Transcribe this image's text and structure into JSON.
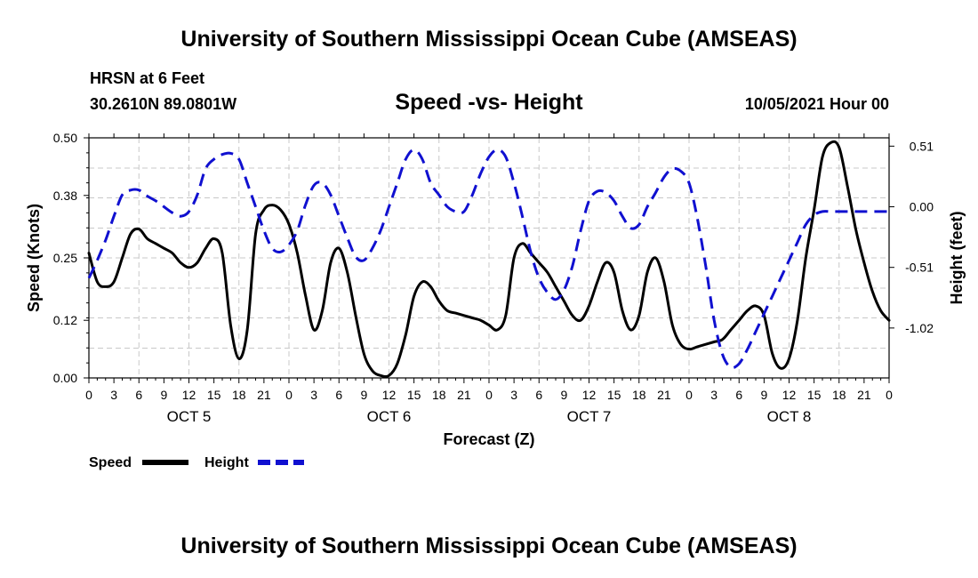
{
  "header": {
    "title": "University of Southern Mississippi Ocean Cube (AMSEAS)",
    "station": "HRSN at 6 Feet",
    "coords": "30.2610N  89.0801W",
    "chart_title": "Speed -vs- Height",
    "datetime": "10/05/2021 Hour 00"
  },
  "footer": {
    "title": "University of Southern Mississippi Ocean Cube (AMSEAS)"
  },
  "chart_data": {
    "type": "line",
    "title": "Speed -vs- Height",
    "xlabel": "Forecast (Z)",
    "ylabel": "Speed (Knots)",
    "y2label": "Height (feet)",
    "grid": true,
    "xlim": [
      0,
      96
    ],
    "ylim": [
      0,
      0.5
    ],
    "y2lim": [
      -1.44,
      0.58
    ],
    "x_ticks": [
      0,
      3,
      6,
      9,
      12,
      15,
      18,
      21,
      24,
      27,
      30,
      33,
      36,
      39,
      42,
      45,
      48,
      51,
      54,
      57,
      60,
      63,
      66,
      69,
      72,
      75,
      78,
      81,
      84,
      87,
      90,
      93,
      96
    ],
    "x_tick_labels": [
      "0",
      "3",
      "6",
      "9",
      "12",
      "15",
      "18",
      "21",
      "0",
      "3",
      "6",
      "9",
      "12",
      "15",
      "18",
      "21",
      "0",
      "3",
      "6",
      "9",
      "12",
      "15",
      "18",
      "21",
      "0",
      "3",
      "6",
      "9",
      "12",
      "15",
      "18",
      "21",
      "0"
    ],
    "day_labels": [
      {
        "x": 12,
        "label": "OCT 5"
      },
      {
        "x": 36,
        "label": "OCT 6"
      },
      {
        "x": 60,
        "label": "OCT 7"
      },
      {
        "x": 84,
        "label": "OCT 8"
      }
    ],
    "y_ticks": [
      0.0,
      0.12,
      0.25,
      0.38,
      0.5
    ],
    "y_tick_labels": [
      "0.00",
      "0.12",
      "0.25",
      "0.38",
      "0.50"
    ],
    "y2_ticks": [
      0.51,
      0.0,
      -0.51,
      -1.02
    ],
    "y2_tick_labels": [
      "0.51",
      "0.00",
      "-0.51",
      "-1.02"
    ],
    "legend": [
      {
        "name": "Speed",
        "color": "#000000",
        "dash": "solid"
      },
      {
        "name": "Height",
        "color": "#1010d0",
        "dash": "dashed"
      }
    ],
    "series": [
      {
        "name": "Speed",
        "axis": "left",
        "color": "#000000",
        "x": [
          0,
          1,
          2,
          3,
          4,
          5,
          6,
          7,
          8,
          9,
          10,
          11,
          12,
          13,
          14,
          15,
          16,
          17,
          18,
          19,
          20,
          21,
          22,
          23,
          24,
          25,
          26,
          27,
          28,
          29,
          30,
          31,
          32,
          33,
          34,
          35,
          36,
          37,
          38,
          39,
          40,
          41,
          42,
          43,
          44,
          45,
          46,
          47,
          48,
          49,
          50,
          51,
          52,
          53,
          54,
          55,
          56,
          57,
          58,
          59,
          60,
          61,
          62,
          63,
          64,
          65,
          66,
          67,
          68,
          69,
          70,
          71,
          72,
          73,
          74,
          75,
          76,
          77,
          78,
          79,
          80,
          81,
          82,
          83,
          84,
          85,
          86,
          87,
          88,
          89,
          90,
          91,
          92,
          93,
          94,
          95,
          96
        ],
        "values": [
          0.26,
          0.2,
          0.19,
          0.2,
          0.25,
          0.3,
          0.31,
          0.29,
          0.28,
          0.27,
          0.26,
          0.24,
          0.23,
          0.24,
          0.27,
          0.29,
          0.26,
          0.11,
          0.04,
          0.1,
          0.3,
          0.35,
          0.36,
          0.35,
          0.32,
          0.26,
          0.17,
          0.1,
          0.14,
          0.24,
          0.27,
          0.22,
          0.13,
          0.05,
          0.015,
          0.005,
          0.005,
          0.03,
          0.09,
          0.17,
          0.2,
          0.19,
          0.16,
          0.14,
          0.135,
          0.13,
          0.125,
          0.12,
          0.11,
          0.1,
          0.13,
          0.25,
          0.28,
          0.26,
          0.24,
          0.22,
          0.19,
          0.16,
          0.13,
          0.12,
          0.15,
          0.2,
          0.24,
          0.22,
          0.14,
          0.1,
          0.13,
          0.22,
          0.25,
          0.2,
          0.11,
          0.07,
          0.06,
          0.065,
          0.07,
          0.075,
          0.08,
          0.1,
          0.12,
          0.14,
          0.15,
          0.13,
          0.05,
          0.02,
          0.04,
          0.12,
          0.25,
          0.35,
          0.46,
          0.49,
          0.48,
          0.4,
          0.31,
          0.24,
          0.18,
          0.14,
          0.12
        ]
      },
      {
        "name": "Height",
        "axis": "right",
        "color": "#1010d0",
        "x": [
          0,
          1,
          2,
          3,
          4,
          5,
          6,
          7,
          8,
          9,
          10,
          11,
          12,
          13,
          14,
          15,
          16,
          17,
          18,
          19,
          20,
          21,
          22,
          23,
          24,
          25,
          26,
          27,
          28,
          29,
          30,
          31,
          32,
          33,
          34,
          35,
          36,
          37,
          38,
          39,
          40,
          41,
          42,
          43,
          44,
          45,
          46,
          47,
          48,
          49,
          50,
          51,
          52,
          53,
          54,
          55,
          56,
          57,
          58,
          59,
          60,
          61,
          62,
          63,
          64,
          65,
          66,
          67,
          68,
          69,
          70,
          71,
          72,
          73,
          74,
          75,
          76,
          77,
          78,
          79,
          80,
          81,
          82,
          83,
          84,
          85,
          86,
          87,
          88,
          89,
          90,
          91,
          92,
          93,
          94,
          95,
          96
        ],
        "values": [
          -0.6,
          -0.45,
          -0.28,
          -0.08,
          0.1,
          0.14,
          0.14,
          0.09,
          0.05,
          0.0,
          -0.05,
          -0.08,
          -0.04,
          0.1,
          0.32,
          0.4,
          0.44,
          0.45,
          0.4,
          0.2,
          0.0,
          -0.2,
          -0.35,
          -0.38,
          -0.32,
          -0.2,
          0.02,
          0.18,
          0.2,
          0.1,
          -0.08,
          -0.26,
          -0.42,
          -0.45,
          -0.35,
          -0.2,
          0.0,
          0.2,
          0.4,
          0.48,
          0.4,
          0.2,
          0.1,
          0.0,
          -0.04,
          -0.04,
          0.1,
          0.28,
          0.42,
          0.48,
          0.42,
          0.2,
          -0.08,
          -0.38,
          -0.6,
          -0.72,
          -0.78,
          -0.7,
          -0.5,
          -0.2,
          0.05,
          0.13,
          0.12,
          0.05,
          -0.08,
          -0.18,
          -0.15,
          0.0,
          0.12,
          0.25,
          0.32,
          0.3,
          0.2,
          -0.1,
          -0.5,
          -0.95,
          -1.24,
          -1.35,
          -1.32,
          -1.2,
          -1.05,
          -0.9,
          -0.75,
          -0.6,
          -0.45,
          -0.3,
          -0.15,
          -0.07,
          -0.04,
          -0.04,
          -0.04,
          -0.04,
          -0.04,
          -0.04,
          -0.04,
          -0.04,
          -0.04
        ]
      }
    ]
  }
}
